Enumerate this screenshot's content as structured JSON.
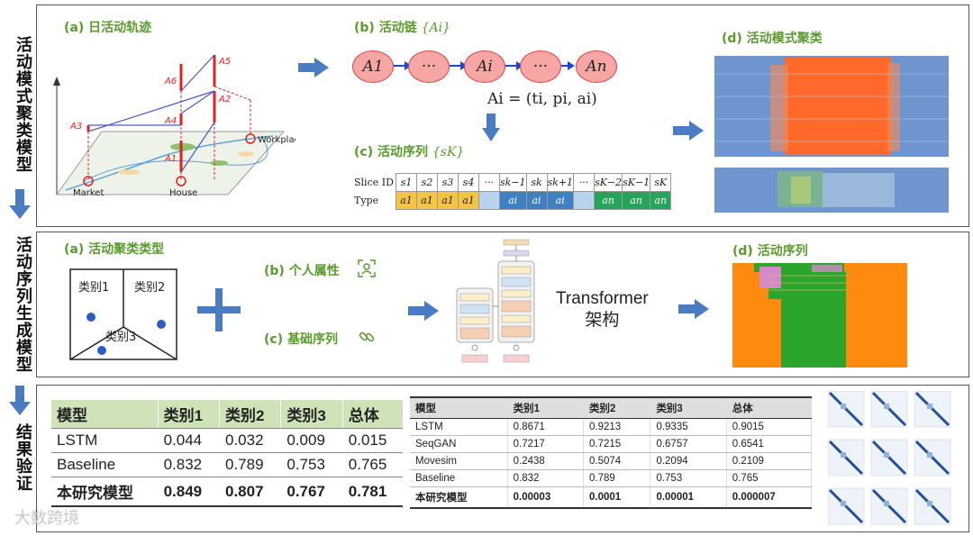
{
  "side_labels": {
    "clustering": "活动模式聚类模型",
    "generation": "活动序列生成模型",
    "validation": "结果验证"
  },
  "panel1": {
    "a_title": "(a) 日活动轨迹",
    "trajectory": {
      "workplace": "Workplace",
      "market": "Market",
      "house": "House",
      "labels": [
        "A5",
        "A6",
        "A2",
        "A3",
        "A4",
        "A1"
      ]
    },
    "b_title": "(b) 活动链",
    "b_math": "{Ai}",
    "chain_nodes": [
      "A1",
      "···",
      "Ai",
      "···",
      "An"
    ],
    "formula": "Ai = (ti, pi, ai)",
    "c_title": "(c) 活动序列",
    "c_math": "{sK}",
    "seq_table": {
      "row1_label": "Slice ID",
      "row2_label": "Type",
      "slice_ids": [
        "s1",
        "s2",
        "s3",
        "s4",
        "···",
        "sk−1",
        "sk",
        "sk+1",
        "···",
        "sK−2",
        "sK−1",
        "sK"
      ],
      "types": [
        "a1",
        "a1",
        "a1",
        "a1",
        "",
        "ai",
        "ai",
        "ai",
        "",
        "an",
        "an",
        "an"
      ]
    },
    "d_title": "(d) 活动模式聚类"
  },
  "panel2": {
    "a_title": "(a) 活动聚类类型",
    "clusters": [
      "类别1",
      "类别2",
      "类别3"
    ],
    "b_title": "(b) 个人属性",
    "c_title": "(c) 基础序列",
    "transformer_label_1": "Transformer",
    "transformer_label_2": "架构",
    "d_title": "(d) 活动序列"
  },
  "panel3": {
    "left_table": {
      "headers": [
        "模型",
        "类别1",
        "类别2",
        "类别3",
        "总体"
      ],
      "rows": [
        [
          "LSTM",
          "0.044",
          "0.032",
          "0.009",
          "0.015"
        ],
        [
          "Baseline",
          "0.832",
          "0.789",
          "0.753",
          "0.765"
        ],
        [
          "本研究模型",
          "0.849",
          "0.807",
          "0.767",
          "0.781"
        ]
      ]
    },
    "right_table": {
      "headers": [
        "模型",
        "类别1",
        "类别2",
        "类别3",
        "总体"
      ],
      "rows": [
        [
          "LSTM",
          "0.8671",
          "0.9213",
          "0.9335",
          "0.9015"
        ],
        [
          "SeqGAN",
          "0.7217",
          "0.7215",
          "0.6757",
          "0.6541"
        ],
        [
          "Movesim",
          "0.2438",
          "0.5074",
          "0.2094",
          "0.2109"
        ],
        [
          "Baseline",
          "0.832",
          "0.789",
          "0.753",
          "0.765"
        ],
        [
          "本研究模型",
          "0.00003",
          "0.0001",
          "0.00001",
          "0.000007"
        ]
      ]
    }
  },
  "watermark": "大数跨境",
  "colors": {
    "green_title": "#5a9a2f",
    "arrow_blue": "#4a7cc4",
    "node_fill": "#f7a6a6",
    "heat_blue": "#6f95d1",
    "heat_orange": "#ff6a2a",
    "seq_orange": "#ff8a10",
    "seq_green": "#2ca52c"
  }
}
